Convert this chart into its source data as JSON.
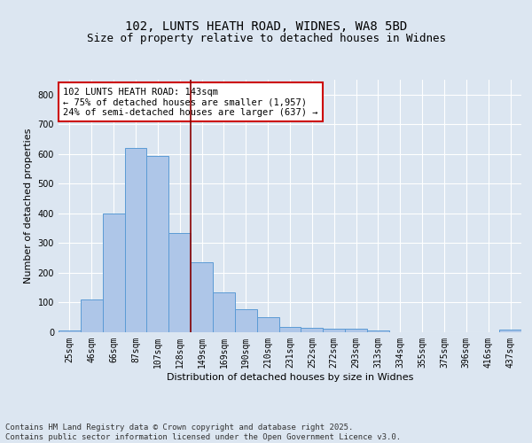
{
  "title_line1": "102, LUNTS HEATH ROAD, WIDNES, WA8 5BD",
  "title_line2": "Size of property relative to detached houses in Widnes",
  "xlabel": "Distribution of detached houses by size in Widnes",
  "ylabel": "Number of detached properties",
  "categories": [
    "25sqm",
    "46sqm",
    "66sqm",
    "87sqm",
    "107sqm",
    "128sqm",
    "149sqm",
    "169sqm",
    "190sqm",
    "210sqm",
    "231sqm",
    "252sqm",
    "272sqm",
    "293sqm",
    "313sqm",
    "334sqm",
    "355sqm",
    "375sqm",
    "396sqm",
    "416sqm",
    "437sqm"
  ],
  "values": [
    5,
    110,
    400,
    620,
    595,
    335,
    235,
    135,
    78,
    50,
    18,
    15,
    13,
    13,
    5,
    0,
    0,
    0,
    0,
    0,
    8
  ],
  "bar_color": "#aec6e8",
  "bar_edge_color": "#5b9bd5",
  "annotation_line1": "102 LUNTS HEATH ROAD: 143sqm",
  "annotation_line2": "← 75% of detached houses are smaller (1,957)",
  "annotation_line3": "24% of semi-detached houses are larger (637) →",
  "annotation_box_color": "#ffffff",
  "annotation_box_edge_color": "#cc0000",
  "vline_color": "#8b0000",
  "vline_x": 5.5,
  "ylim": [
    0,
    850
  ],
  "yticks": [
    0,
    100,
    200,
    300,
    400,
    500,
    600,
    700,
    800
  ],
  "background_color": "#dce6f1",
  "grid_color": "#ffffff",
  "footer_text": "Contains HM Land Registry data © Crown copyright and database right 2025.\nContains public sector information licensed under the Open Government Licence v3.0.",
  "title_fontsize": 10,
  "subtitle_fontsize": 9,
  "xlabel_fontsize": 8,
  "ylabel_fontsize": 8,
  "tick_fontsize": 7,
  "annotation_fontsize": 7.5,
  "footer_fontsize": 6.5
}
